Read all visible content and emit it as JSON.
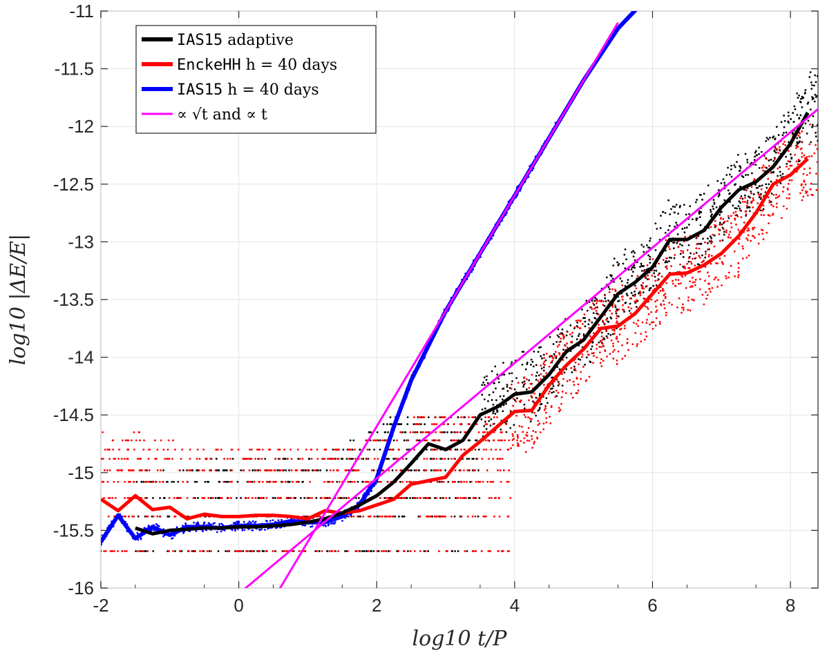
{
  "chart_data": {
    "type": "scatter",
    "title": "",
    "xlabel": "log10 t/P",
    "ylabel": "log10 |ΔE/E|",
    "xlim": [
      -2,
      8.4
    ],
    "ylim": [
      -16,
      -11
    ],
    "x_ticks": [
      -2,
      0,
      2,
      4,
      6,
      8
    ],
    "y_ticks": [
      -16,
      -15.5,
      -15,
      -14.5,
      -14,
      -13.5,
      -13,
      -12.5,
      -12,
      -11.5,
      -11
    ],
    "x_tick_labels": [
      "-2",
      "0",
      "2",
      "4",
      "6",
      "8"
    ],
    "y_tick_labels": [
      "-16",
      "-15.5",
      "-15",
      "-14.5",
      "-14",
      "-13.5",
      "-13",
      "-12.5",
      "-12",
      "-11.5",
      "-11"
    ],
    "grid": true,
    "legend_position": "top-left",
    "legend": [
      {
        "mono": "IAS15",
        "rest": " adaptive",
        "color": "#000000"
      },
      {
        "mono": "EnckeHH",
        "rest": " h = 40 days",
        "color": "#ff0000"
      },
      {
        "mono": "IAS15",
        "rest": " h = 40 days",
        "color": "#0000ff"
      },
      {
        "mono": "",
        "rest": "∝ √t and ∝ t",
        "color": "#ff00ff"
      }
    ],
    "series": [
      {
        "color": "#000000",
        "x": [
          -1.5,
          -1.25,
          -1.0,
          -0.75,
          -0.5,
          -0.25,
          0.0,
          0.25,
          0.5,
          0.75,
          1.0,
          1.25,
          1.5,
          1.75,
          2.0,
          2.25,
          2.5,
          2.75,
          3.0,
          3.25,
          3.5,
          3.75,
          4.0,
          4.25,
          4.5,
          4.75,
          5.0,
          5.25,
          5.5,
          5.75,
          6.0,
          6.25,
          6.5,
          6.75,
          7.0,
          7.25,
          7.5,
          7.75,
          8.0,
          8.25
        ],
        "y": [
          -15.48,
          -15.53,
          -15.5,
          -15.49,
          -15.48,
          -15.48,
          -15.47,
          -15.47,
          -15.46,
          -15.45,
          -15.43,
          -15.4,
          -15.35,
          -15.28,
          -15.2,
          -15.08,
          -14.92,
          -14.75,
          -14.8,
          -14.72,
          -14.5,
          -14.43,
          -14.32,
          -14.3,
          -14.15,
          -13.95,
          -13.85,
          -13.65,
          -13.45,
          -13.35,
          -13.22,
          -12.98,
          -12.98,
          -12.9,
          -12.7,
          -12.55,
          -12.48,
          -12.35,
          -12.15,
          -11.88
        ]
      },
      {
        "color": "#ff0000",
        "x": [
          -2.0,
          -1.75,
          -1.5,
          -1.25,
          -1.0,
          -0.75,
          -0.5,
          -0.25,
          0.0,
          0.25,
          0.5,
          0.75,
          1.0,
          1.25,
          1.5,
          1.75,
          2.0,
          2.25,
          2.5,
          2.75,
          3.0,
          3.25,
          3.5,
          3.75,
          4.0,
          4.25,
          4.5,
          4.75,
          5.0,
          5.25,
          5.5,
          5.75,
          6.0,
          6.25,
          6.5,
          6.75,
          7.0,
          7.25,
          7.5,
          7.75,
          8.0,
          8.25
        ],
        "y": [
          -15.23,
          -15.33,
          -15.2,
          -15.32,
          -15.3,
          -15.4,
          -15.36,
          -15.38,
          -15.38,
          -15.37,
          -15.37,
          -15.38,
          -15.4,
          -15.33,
          -15.35,
          -15.33,
          -15.28,
          -15.23,
          -15.1,
          -15.07,
          -15.04,
          -14.85,
          -14.73,
          -14.6,
          -14.47,
          -14.46,
          -14.24,
          -14.07,
          -13.93,
          -13.75,
          -13.73,
          -13.62,
          -13.45,
          -13.28,
          -13.27,
          -13.2,
          -13.1,
          -12.95,
          -12.75,
          -12.5,
          -12.42,
          -12.28
        ]
      },
      {
        "color": "#0000ff",
        "x": [
          -2.0,
          -1.75,
          -1.5,
          -1.25,
          -1.0,
          -0.75,
          -0.5,
          -0.25,
          0.0,
          0.25,
          0.5,
          0.75,
          1.0,
          1.25,
          1.5,
          1.75,
          2.0,
          2.25,
          2.5,
          2.75,
          3.0,
          3.25,
          3.5,
          3.75,
          4.0,
          4.5,
          5.0,
          5.5,
          5.9
        ],
        "y": [
          -15.6,
          -15.37,
          -15.57,
          -15.47,
          -15.54,
          -15.47,
          -15.47,
          -15.48,
          -15.46,
          -15.46,
          -15.45,
          -15.42,
          -15.43,
          -15.43,
          -15.38,
          -15.28,
          -15.05,
          -14.6,
          -14.2,
          -13.9,
          -13.6,
          -13.35,
          -13.1,
          -12.85,
          -12.6,
          -12.1,
          -11.6,
          -11.15,
          -10.9
        ]
      },
      {
        "color": "#ff00ff",
        "x": [
          0.0,
          8.5
        ],
        "y": [
          -16.05,
          -11.8
        ]
      },
      {
        "color": "#ff00ff",
        "x": [
          0.5,
          5.5
        ],
        "y": [
          -16.1,
          -11.1
        ]
      }
    ]
  }
}
